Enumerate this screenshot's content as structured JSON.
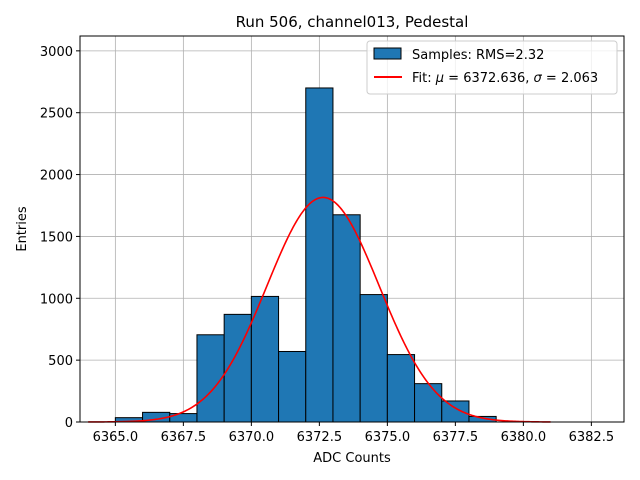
{
  "chart_data": {
    "type": "bar",
    "title": "Run 506, channel013, Pedestal",
    "xlabel": "ADC Counts",
    "ylabel": "Entries",
    "xlim": [
      6363.7,
      6383.7
    ],
    "ylim": [
      0,
      3120
    ],
    "xticks": [
      6365.0,
      6367.5,
      6370.0,
      6372.5,
      6375.0,
      6377.5,
      6380.0,
      6382.5
    ],
    "xtick_labels": [
      "6365.0",
      "6367.5",
      "6370.0",
      "6372.5",
      "6375.0",
      "6377.5",
      "6380.0",
      "6382.5"
    ],
    "yticks": [
      0,
      500,
      1000,
      1500,
      2000,
      2500,
      3000
    ],
    "ytick_labels": [
      "0",
      "500",
      "1000",
      "1500",
      "2000",
      "2500",
      "3000"
    ],
    "grid": true,
    "legend_position": "top-right",
    "histogram": {
      "name": "Samples: RMS=2.32",
      "color": "#1f77b4",
      "edge_color": "#000000",
      "bins": [
        {
          "x0": 6365.0,
          "x1": 6366.0,
          "count": 35
        },
        {
          "x0": 6366.0,
          "x1": 6367.0,
          "count": 78
        },
        {
          "x0": 6367.0,
          "x1": 6368.0,
          "count": 68
        },
        {
          "x0": 6368.0,
          "x1": 6369.0,
          "count": 705
        },
        {
          "x0": 6369.0,
          "x1": 6370.0,
          "count": 870
        },
        {
          "x0": 6370.0,
          "x1": 6371.0,
          "count": 1015
        },
        {
          "x0": 6371.0,
          "x1": 6372.0,
          "count": 570
        },
        {
          "x0": 6372.0,
          "x1": 6373.0,
          "count": 2700
        },
        {
          "x0": 6373.0,
          "x1": 6374.0,
          "count": 1675
        },
        {
          "x0": 6374.0,
          "x1": 6375.0,
          "count": 1030
        },
        {
          "x0": 6375.0,
          "x1": 6376.0,
          "count": 545
        },
        {
          "x0": 6376.0,
          "x1": 6377.0,
          "count": 310
        },
        {
          "x0": 6377.0,
          "x1": 6378.0,
          "count": 170
        },
        {
          "x0": 6378.0,
          "x1": 6379.0,
          "count": 45
        }
      ]
    },
    "fit": {
      "name_prefix": "Fit: ",
      "mu_symbol": "μ",
      "mu_value": "6372.636",
      "sigma_symbol": "σ",
      "sigma_value": "2.063",
      "color": "#ff0000",
      "mu": 6372.636,
      "sigma": 2.063,
      "amplitude": 1815,
      "x_range": [
        6364.0,
        6381.0
      ]
    }
  }
}
